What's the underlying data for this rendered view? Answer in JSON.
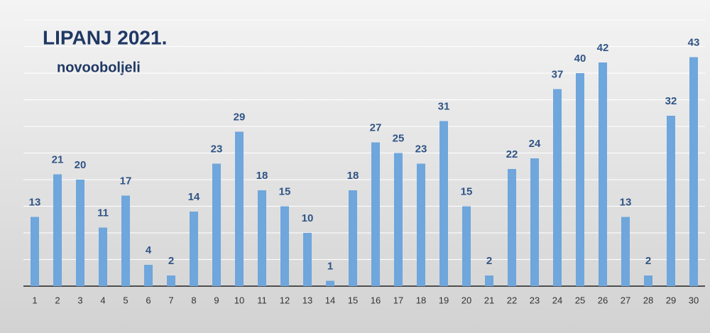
{
  "chart_data": {
    "type": "bar",
    "title": "LIPANJ 2021.",
    "subtitle": "novooboljeli",
    "categories": [
      "1",
      "2",
      "3",
      "4",
      "5",
      "6",
      "7",
      "8",
      "9",
      "10",
      "11",
      "12",
      "13",
      "14",
      "15",
      "16",
      "17",
      "18",
      "19",
      "20",
      "21",
      "22",
      "23",
      "24",
      "25",
      "26",
      "27",
      "28",
      "29",
      "30"
    ],
    "values": [
      13,
      21,
      20,
      11,
      17,
      4,
      2,
      14,
      23,
      29,
      18,
      15,
      10,
      1,
      18,
      27,
      25,
      23,
      31,
      15,
      2,
      22,
      24,
      37,
      40,
      42,
      13,
      2,
      32,
      43
    ],
    "color": "#6fa6dc",
    "ylim": [
      0,
      50
    ],
    "yticks": [
      0,
      5,
      10,
      15,
      20,
      25,
      30,
      35,
      40,
      45,
      50
    ],
    "grid": true
  }
}
